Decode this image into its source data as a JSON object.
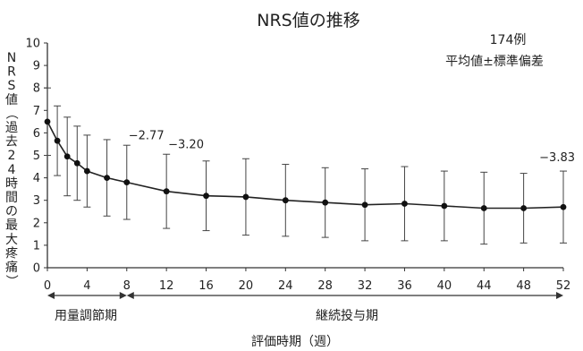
{
  "chart_data": {
    "type": "line",
    "title": "NRS値の推移",
    "n_label": "174例",
    "stat_label": "平均値±標準偏差",
    "ylabel": "NRS値（過去24時間の最大疼痛）",
    "xlabel": "評価時期（週）",
    "ylim": [
      0,
      10
    ],
    "yticks": [
      0,
      1,
      2,
      3,
      4,
      5,
      6,
      7,
      8,
      9,
      10
    ],
    "xlim": [
      0,
      52
    ],
    "xticks": [
      0,
      4,
      8,
      12,
      16,
      20,
      24,
      28,
      32,
      36,
      40,
      44,
      48,
      52
    ],
    "series": [
      {
        "x": [
          0,
          1,
          2,
          3,
          4,
          6,
          8,
          12,
          16,
          20,
          24,
          28,
          32,
          36,
          40,
          44,
          48,
          52
        ],
        "mean": [
          6.5,
          5.65,
          4.95,
          4.65,
          4.3,
          4.0,
          3.8,
          3.4,
          3.2,
          3.15,
          3.0,
          2.9,
          2.8,
          2.85,
          2.75,
          2.65,
          2.65,
          2.7
        ],
        "sd": [
          1.5,
          1.55,
          1.75,
          1.65,
          1.6,
          1.7,
          1.65,
          1.65,
          1.55,
          1.7,
          1.6,
          1.55,
          1.6,
          1.65,
          1.55,
          1.6,
          1.55,
          1.6
        ]
      }
    ],
    "annotations": [
      {
        "x": 8,
        "y": 3.8,
        "text": "−2.77"
      },
      {
        "x": 12,
        "y": 3.4,
        "text": "−3.20"
      },
      {
        "x": 52,
        "y": 2.7,
        "text": "−3.83"
      }
    ],
    "phases": [
      {
        "label": "用量調節期",
        "from": 0,
        "to": 8
      },
      {
        "label": "継続投与期",
        "from": 8,
        "to": 52
      }
    ],
    "colors": {
      "line": "#222222",
      "marker": "#111111",
      "axis": "#333333",
      "errorbar": "#444444"
    }
  }
}
